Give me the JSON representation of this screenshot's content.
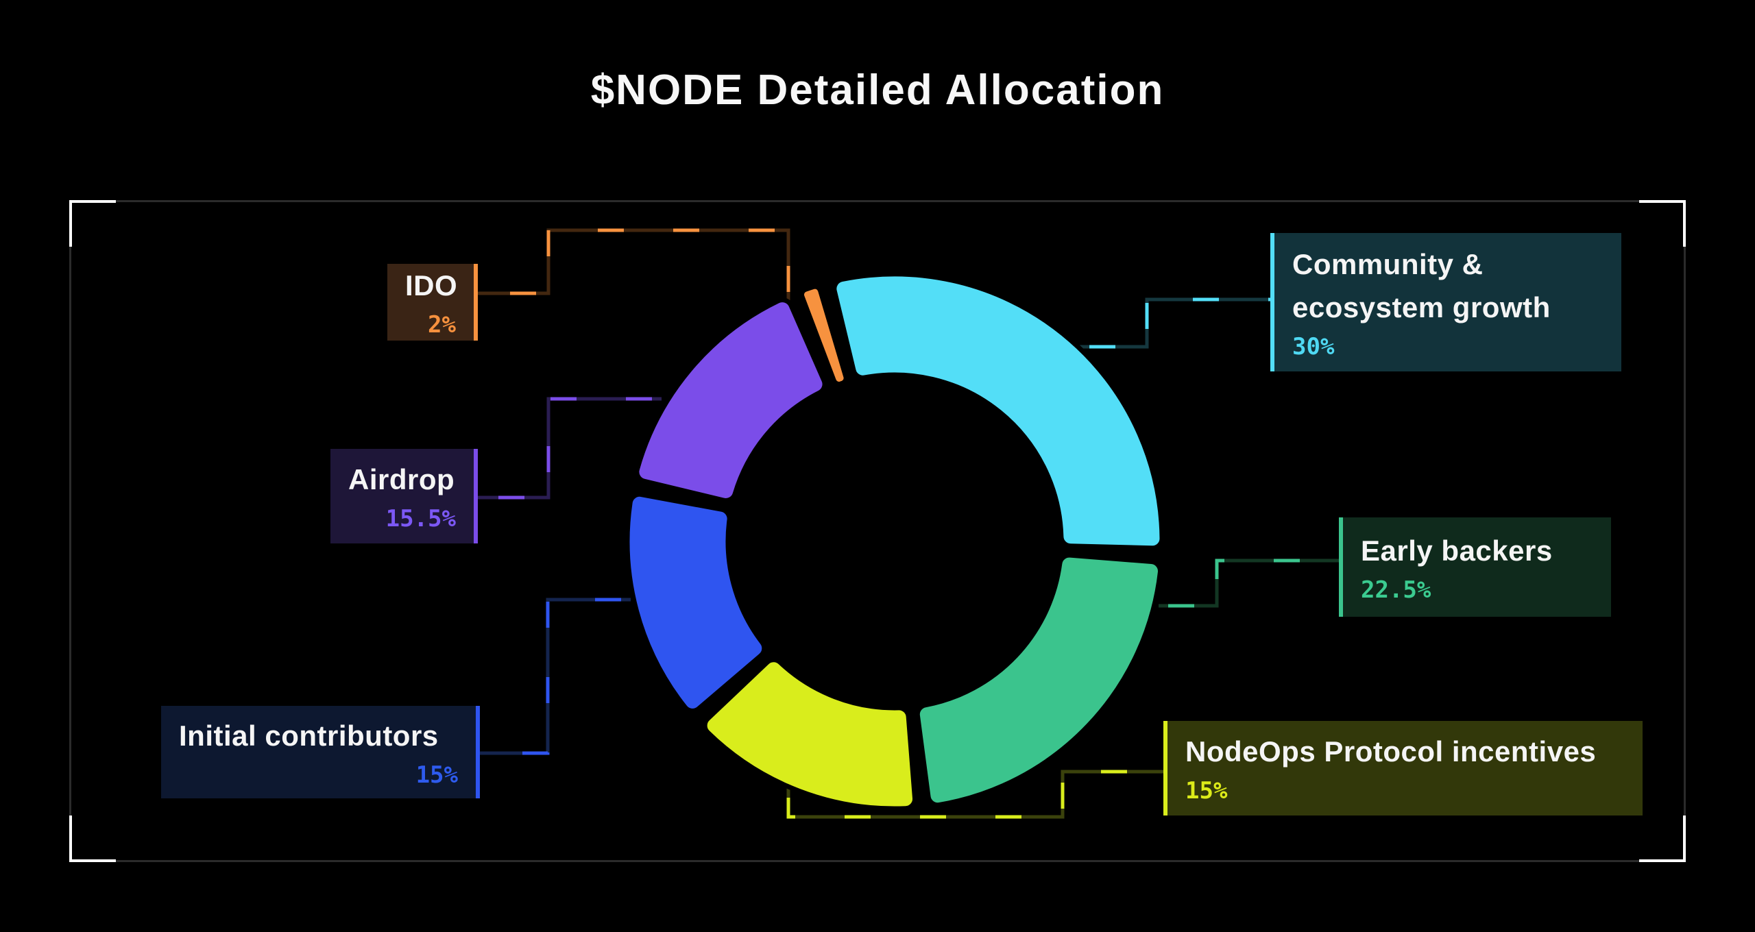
{
  "title": "$NODE Detailed Allocation",
  "background": "#000000",
  "frame": {
    "border_color": "#2B2B2B",
    "corner_color": "#FFFFFF"
  },
  "chart_data": {
    "type": "pie",
    "subtype": "donut",
    "title": "$NODE Detailed Allocation",
    "unit": "%",
    "start_angle_deg": 345,
    "pad_angle_deg": 3,
    "grid": false,
    "legend_position": "callout-labels",
    "segments": [
      {
        "label": "Community & ecosystem growth",
        "label_lines": [
          "Community &",
          "ecosystem growth"
        ],
        "value": 30,
        "display": "30%",
        "color": "#53DEF7",
        "pct_color": "#4FD9F3",
        "box_bg": "#12333B",
        "connector_dark": "#15383F"
      },
      {
        "label": "Early backers",
        "label_lines": [
          "Early backers"
        ],
        "value": 22.5,
        "display": "22.5%",
        "color": "#3BC48D",
        "pct_color": "#3BCB90",
        "box_bg": "#0F2A1C",
        "connector_dark": "#133723"
      },
      {
        "label": "NodeOps Protocol incentives",
        "label_lines": [
          "NodeOps Protocol incentives"
        ],
        "value": 15,
        "display": "15%",
        "color": "#D9ED1C",
        "pct_color": "#DCEB19",
        "box_bg": "#32380A",
        "connector_dark": "#3B420C"
      },
      {
        "label": "Initial contributors",
        "label_lines": [
          "Initial contributors"
        ],
        "value": 15,
        "display": "15%",
        "color": "#2F55F0",
        "pct_color": "#2E5BEE",
        "box_bg": "#0D1830",
        "connector_dark": "#14244E"
      },
      {
        "label": "Airdrop",
        "label_lines": [
          "Airdrop"
        ],
        "value": 15.5,
        "display": "15.5%",
        "color": "#7B4DE9",
        "pct_color": "#7C58F5",
        "box_bg": "#1E1638",
        "connector_dark": "#2A1D52"
      },
      {
        "label": "IDO",
        "label_lines": [
          "IDO"
        ],
        "value": 2,
        "display": "2%",
        "color": "#F7923F",
        "pct_color": "#F7913E",
        "box_bg": "#3A2415",
        "connector_dark": "#432710"
      }
    ]
  }
}
